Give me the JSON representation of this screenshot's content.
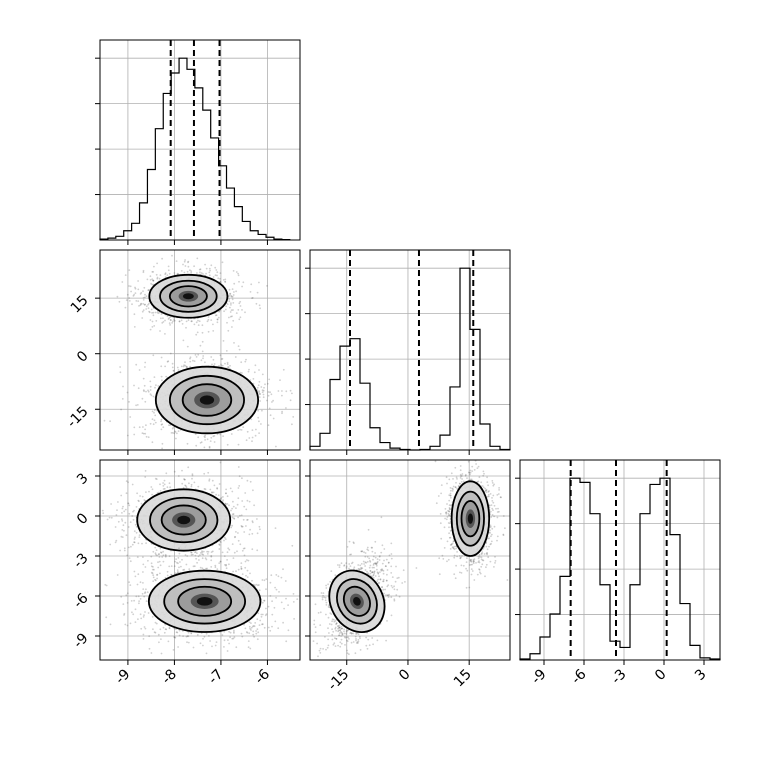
{
  "chart_data": {
    "type": "scatter",
    "subtype": "corner-plot",
    "parameters": [
      "",
      "",
      ""
    ],
    "grid": true,
    "histograms": [
      {
        "param_index": 0,
        "range": [
          -9.6,
          -5.3
        ],
        "bin_edges": [
          -9.6,
          -9.43,
          -9.26,
          -9.09,
          -8.92,
          -8.75,
          -8.58,
          -8.41,
          -8.24,
          -8.07,
          -7.9,
          -7.73,
          -7.56,
          -7.39,
          -7.22,
          -7.05,
          -6.88,
          -6.71,
          -6.54,
          -6.37,
          -6.2,
          -6.03,
          -5.86,
          -5.69,
          -5.52
        ],
        "counts": [
          0.005,
          0.01,
          0.02,
          0.05,
          0.09,
          0.2,
          0.38,
          0.6,
          0.79,
          0.9,
          0.98,
          0.92,
          0.82,
          0.7,
          0.55,
          0.4,
          0.28,
          0.18,
          0.1,
          0.05,
          0.03,
          0.015,
          0.005,
          0.002
        ],
        "quantiles": [
          -8.08,
          -7.58,
          -7.03
        ],
        "ticks": [
          -9,
          -8,
          -7,
          -6
        ]
      },
      {
        "param_index": 1,
        "range": [
          -24,
          25
        ],
        "bin_edges": [
          -24,
          -21.55,
          -19.1,
          -16.65,
          -14.2,
          -11.75,
          -9.3,
          -6.85,
          -4.4,
          -1.95,
          0.5,
          2.95,
          5.4,
          7.85,
          10.3,
          12.75,
          15.2,
          17.65,
          20.1,
          22.55,
          25
        ],
        "counts": [
          0.02,
          0.09,
          0.38,
          0.56,
          0.6,
          0.36,
          0.12,
          0.04,
          0.01,
          0.003,
          0,
          0.003,
          0.02,
          0.08,
          0.34,
          0.98,
          0.65,
          0.14,
          0.02,
          0.003
        ],
        "quantiles": [
          -14.2,
          2.7,
          16.0
        ],
        "ticks": [
          -15,
          0,
          15
        ]
      },
      {
        "param_index": 2,
        "range": [
          -10.8,
          4.2
        ],
        "bin_edges": [
          -10.8,
          -10.05,
          -9.3,
          -8.55,
          -7.8,
          -7.05,
          -6.3,
          -5.55,
          -4.8,
          -4.05,
          -3.3,
          -2.55,
          -1.8,
          -1.05,
          -0.3,
          0.45,
          1.2,
          1.95,
          2.7,
          3.45,
          4.2
        ],
        "counts": [
          0.005,
          0.03,
          0.11,
          0.22,
          0.4,
          0.87,
          0.85,
          0.7,
          0.36,
          0.09,
          0.06,
          0.36,
          0.7,
          0.84,
          0.87,
          0.6,
          0.27,
          0.07,
          0.01,
          0.005
        ],
        "quantiles": [
          -7.0,
          -3.6,
          0.2
        ],
        "ticks": [
          -9,
          -6,
          -3,
          0,
          3
        ]
      }
    ],
    "scatter_panels": [
      {
        "x_param": 0,
        "y_param": 1,
        "xlim": [
          -9.6,
          -5.3
        ],
        "ylim": [
          -26,
          28
        ],
        "clusters": [
          {
            "x": -7.7,
            "y": 15.5,
            "sx": 0.42,
            "sy": 2.9,
            "weight": 0.5
          },
          {
            "x": -7.3,
            "y": -12.5,
            "sx": 0.55,
            "sy": 4.5,
            "weight": 0.5
          }
        ]
      },
      {
        "x_param": 0,
        "y_param": 2,
        "xlim": [
          -9.6,
          -5.3
        ],
        "ylim": [
          -10.8,
          4.2
        ],
        "clusters": [
          {
            "x": -7.8,
            "y": -0.3,
            "sx": 0.5,
            "sy": 1.15,
            "weight": 0.5
          },
          {
            "x": -7.35,
            "y": -6.4,
            "sx": 0.6,
            "sy": 1.15,
            "weight": 0.5
          }
        ]
      },
      {
        "x_param": 1,
        "y_param": 2,
        "xlim": [
          -24,
          25
        ],
        "ylim": [
          -10.8,
          4.2
        ],
        "clusters": [
          {
            "x": 15.3,
            "y": -0.2,
            "sx": 2.3,
            "sy": 1.4,
            "weight": 0.5
          },
          {
            "x": -12.5,
            "y": -6.4,
            "sx": 3.2,
            "sy": 1.2,
            "weight": 0.5,
            "tilt": 0.45
          }
        ]
      }
    ],
    "x_ticks": [
      [
        -9,
        -8,
        -7,
        -6
      ],
      [
        -15,
        0,
        15
      ],
      [
        -9,
        -6,
        -3,
        0,
        3
      ]
    ],
    "y_ticks": [
      [],
      [
        15,
        0,
        -15
      ],
      [
        3,
        0,
        -3,
        -6,
        -9
      ]
    ]
  }
}
